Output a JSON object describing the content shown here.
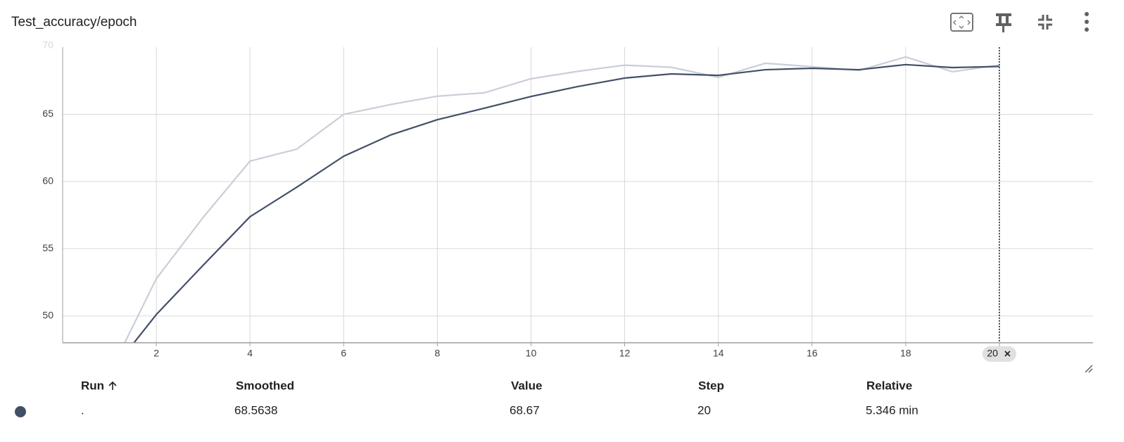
{
  "chart_data": {
    "type": "line",
    "title": "Test_accuracy/epoch",
    "x": [
      1,
      2,
      3,
      4,
      5,
      6,
      7,
      8,
      9,
      10,
      11,
      12,
      13,
      14,
      15,
      16,
      17,
      18,
      19,
      20
    ],
    "series": [
      {
        "color": "#c9ced8",
        "values": [
          45.7,
          52.77,
          57.33,
          61.52,
          62.41,
          65.0,
          65.73,
          66.35,
          66.6,
          67.65,
          68.2,
          68.66,
          68.5,
          67.75,
          68.8,
          68.55,
          68.27,
          69.27,
          68.17,
          68.67
        ]
      },
      {
        "color": "#425066",
        "values": [
          45.7,
          50.1,
          53.77,
          57.38,
          59.58,
          61.88,
          63.46,
          64.6,
          65.45,
          66.33,
          67.07,
          67.7,
          68.01,
          67.9,
          68.32,
          68.43,
          68.32,
          68.7,
          68.48,
          68.5638
        ]
      }
    ],
    "xlim": [
      0,
      22
    ],
    "xticks": [
      2,
      4,
      6,
      8,
      10,
      12,
      14,
      16,
      18,
      20
    ],
    "ylim": [
      48,
      70
    ],
    "yticks": [
      50,
      55,
      60,
      65,
      70
    ],
    "grid": true
  },
  "table": {
    "headers": [
      "Run",
      "Smoothed",
      "Value",
      "Step",
      "Relative"
    ],
    "rows": [
      [
        ".",
        "68.5638",
        "68.67",
        "20",
        "5.346 min"
      ]
    ]
  }
}
